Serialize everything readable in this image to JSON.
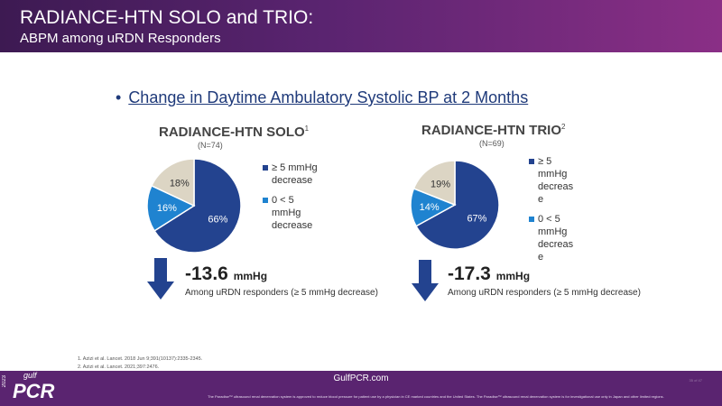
{
  "header": {
    "title": "RADIANCE-HTN SOLO and TRIO:",
    "subtitle": "ABPM among uRDN Responders"
  },
  "bullet": {
    "dot": "•",
    "text": "Change in Daytime Ambulatory Systolic BP at 2 Months"
  },
  "colors": {
    "dark_blue": "#23438f",
    "light_blue": "#1f83d0",
    "beige": "#dcd5c4"
  },
  "chart_data": [
    {
      "type": "pie",
      "title": "RADIANCE-HTN SOLO",
      "title_sup": "1",
      "n_label": "(N=74)",
      "series": [
        {
          "label": "≥ 5 mmHg decrease",
          "value": 66,
          "display": "66%",
          "color": "#23438f"
        },
        {
          "label": "0 < 5 mmHg decrease",
          "value": 16,
          "display": "16%",
          "color": "#1f83d0"
        },
        {
          "label": "",
          "value": 18,
          "display": "18%",
          "color": "#dcd5c4"
        }
      ],
      "legend": [
        "≥ 5 mmHg decrease",
        "0 < 5 mmHg decrease"
      ],
      "change_value": "-13.6",
      "change_unit": "mmHg",
      "change_caption": "Among uRDN responders (≥ 5 mmHg decrease)"
    },
    {
      "type": "pie",
      "title": "RADIANCE-HTN TRIO",
      "title_sup": "2",
      "n_label": "(N=69)",
      "series": [
        {
          "label": "≥ 5 mmHg decrease",
          "value": 67,
          "display": "67%",
          "color": "#23438f"
        },
        {
          "label": "0 < 5 mmHg decrease",
          "value": 14,
          "display": "14%",
          "color": "#1f83d0"
        },
        {
          "label": "",
          "value": 19,
          "display": "19%",
          "color": "#dcd5c4"
        }
      ],
      "legend": [
        "≥ 5 mmHg decreas e",
        "0 < 5 mmHg decreas e"
      ],
      "change_value": "-17.3",
      "change_unit": "mmHg",
      "change_caption": "Among uRDN responders (≥ 5 mmHg decrease)"
    }
  ],
  "references": [
    "1.   Azizi et al. Lancet. 2018 Jun 9;391(10137):2335-2345.",
    "2.   Azizi et al. Lancet. 2021;397:2476."
  ],
  "footer": {
    "url": "GulfPCR.com",
    "disclaimer": "The Paradise™ ultrasound renal denervation system is approved to reduce blood pressure for patient use by a physician in CE marked countries and the United States. The Paradise™ ultrasound renal denervation system is for investigational use only in Japan and other limited regions.",
    "logo": "PCR",
    "year": "2023",
    "gulf": "gulf",
    "slide_number": "35 of 47"
  }
}
